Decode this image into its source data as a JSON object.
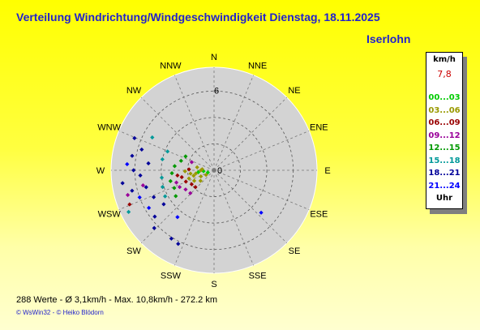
{
  "header": {
    "title": "Verteilung Windrichtung/Windgeschwindigkeit  Dienstag, 18.11.2025",
    "location": "Iserlohn"
  },
  "chart_data": {
    "type": "scatter",
    "subtype": "wind-rose-polar",
    "radial_max": 7.8,
    "ring_label": "6",
    "center_label": "0",
    "directions": [
      "N",
      "NNE",
      "NE",
      "ENE",
      "E",
      "ESE",
      "SE",
      "SSE",
      "S",
      "SSW",
      "SW",
      "WSW",
      "W",
      "WNW",
      "NW",
      "NNW"
    ],
    "speed_classes": [
      {
        "label": "00...03",
        "color": "#00cc00"
      },
      {
        "label": "03...06",
        "color": "#999900"
      },
      {
        "label": "06...09",
        "color": "#990000"
      },
      {
        "label": "09...12",
        "color": "#990099"
      },
      {
        "label": "12...15",
        "color": "#009900"
      },
      {
        "label": "15...18",
        "color": "#009999"
      },
      {
        "label": "18...21",
        "color": "#000099"
      },
      {
        "label": "21...24",
        "color": "#0000ff"
      }
    ],
    "points": [
      [
        263,
        1.2,
        0
      ],
      [
        265,
        0.8,
        0
      ],
      [
        250,
        0.5,
        0
      ],
      [
        240,
        0.7,
        1
      ],
      [
        260,
        1.4,
        1
      ],
      [
        270,
        1.0,
        1
      ],
      [
        255,
        1.6,
        1
      ],
      [
        245,
        1.1,
        1
      ],
      [
        275,
        0.9,
        1
      ],
      [
        262,
        1.8,
        1
      ],
      [
        252,
        2.0,
        1
      ],
      [
        242,
        1.7,
        1
      ],
      [
        232,
        1.3,
        1
      ],
      [
        280,
        1.3,
        1
      ],
      [
        268,
        2.2,
        1
      ],
      [
        258,
        2.5,
        2
      ],
      [
        248,
        2.3,
        2
      ],
      [
        238,
        2.0,
        2
      ],
      [
        228,
        1.9,
        2
      ],
      [
        272,
        1.9,
        2
      ],
      [
        262,
        2.8,
        2
      ],
      [
        252,
        3.0,
        3
      ],
      [
        244,
        2.9,
        3
      ],
      [
        236,
        2.6,
        3
      ],
      [
        226,
        2.5,
        3
      ],
      [
        290,
        1.8,
        3
      ],
      [
        266,
        3.2,
        4
      ],
      [
        256,
        3.4,
        4
      ],
      [
        246,
        3.3,
        4
      ],
      [
        236,
        3.5,
        4
      ],
      [
        276,
        3.0,
        4
      ],
      [
        286,
        2.6,
        4
      ],
      [
        296,
        2.4,
        4
      ],
      [
        262,
        4.0,
        5
      ],
      [
        252,
        4.1,
        5
      ],
      [
        242,
        4.2,
        5
      ],
      [
        282,
        4.0,
        5
      ],
      [
        292,
        3.8,
        5
      ],
      [
        298,
        5.3,
        5
      ],
      [
        236,
        4.6,
        6
      ],
      [
        246,
        5.0,
        6
      ],
      [
        256,
        5.3,
        6
      ],
      [
        266,
        5.6,
        6
      ],
      [
        276,
        5.0,
        6
      ],
      [
        286,
        5.7,
        6
      ],
      [
        292,
        6.5,
        6
      ],
      [
        232,
        5.7,
        6
      ],
      [
        226,
        6.3,
        6
      ],
      [
        212,
        6.1,
        6
      ],
      [
        206,
        6.2,
        6
      ],
      [
        256,
        6.4,
        6
      ],
      [
        262,
        7.0,
        6
      ],
      [
        270,
        6.1,
        6
      ],
      [
        280,
        6.3,
        6
      ],
      [
        250,
        6.0,
        7
      ],
      [
        274,
        6.6,
        7
      ],
      [
        240,
        5.7,
        7
      ],
      [
        132,
        4.8,
        7
      ],
      [
        218,
        4.5,
        7
      ],
      [
        244,
        7.2,
        5
      ],
      [
        258,
        5.5,
        3
      ],
      [
        254,
        6.8,
        3
      ],
      [
        248,
        6.9,
        2
      ]
    ],
    "stats": "288 Werte   -   Ø 3,1km/h  -  Max. 10,8km/h   -   272.2 km"
  },
  "legend": {
    "title": "km/h",
    "max": "7,8",
    "unit": "Uhr"
  },
  "footer": {
    "credits": "© WsWin32   -   © Heiko Blödorn"
  }
}
